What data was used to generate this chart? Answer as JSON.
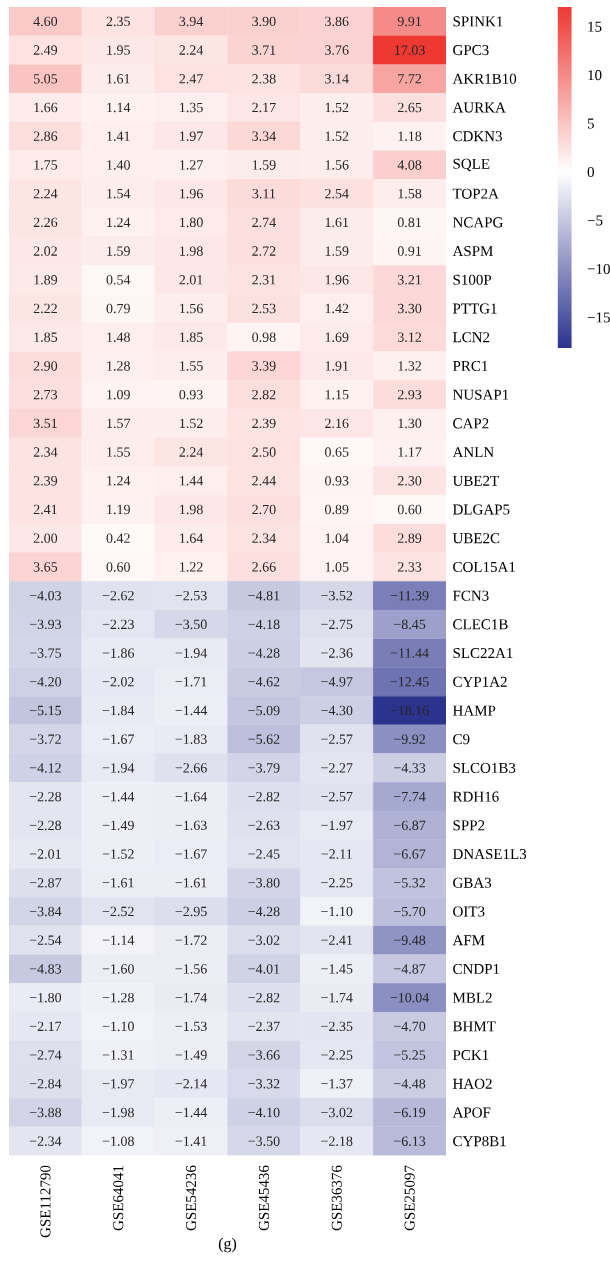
{
  "chart_data": {
    "type": "heatmap",
    "categories": [
      "GSE112790",
      "GSE64041",
      "GSE54236",
      "GSE45436",
      "GSE36376",
      "GSE25097"
    ],
    "y_categories": [
      "SPINK1",
      "GPC3",
      "AKR1B10",
      "AURKA",
      "CDKN3",
      "SQLE",
      "TOP2A",
      "NCAPG",
      "ASPM",
      "S100P",
      "PTTG1",
      "LCN2",
      "PRC1",
      "NUSAP1",
      "CAP2",
      "ANLN",
      "UBE2T",
      "DLGAP5",
      "UBE2C",
      "COL15A1",
      "FCN3",
      "CLEC1B",
      "SLC22A1",
      "CYP1A2",
      "HAMP",
      "C9",
      "SLCO1B3",
      "RDH16",
      "SPP2",
      "DNASE1L3",
      "GBA3",
      "OIT3",
      "AFM",
      "CNDP1",
      "MBL2",
      "BHMT",
      "PCK1",
      "HAO2",
      "APOF",
      "CYP8B1"
    ],
    "cells": [
      [
        4.6,
        2.35,
        3.94,
        3.9,
        3.86,
        9.91
      ],
      [
        2.49,
        1.95,
        2.24,
        3.71,
        3.76,
        17.03
      ],
      [
        5.05,
        1.61,
        2.47,
        2.38,
        3.14,
        7.72
      ],
      [
        1.66,
        1.14,
        1.35,
        2.17,
        1.52,
        2.65
      ],
      [
        2.86,
        1.41,
        1.97,
        3.34,
        1.52,
        1.18
      ],
      [
        1.75,
        1.4,
        1.27,
        1.59,
        1.56,
        4.08
      ],
      [
        2.24,
        1.54,
        1.96,
        3.11,
        2.54,
        1.58
      ],
      [
        2.26,
        1.24,
        1.8,
        2.74,
        1.61,
        0.81
      ],
      [
        2.02,
        1.59,
        1.98,
        2.72,
        1.59,
        0.91
      ],
      [
        1.89,
        0.54,
        2.01,
        2.31,
        1.96,
        3.21
      ],
      [
        2.22,
        0.79,
        1.56,
        2.53,
        1.42,
        3.3
      ],
      [
        1.85,
        1.48,
        1.85,
        0.98,
        1.69,
        3.12
      ],
      [
        2.9,
        1.28,
        1.55,
        3.39,
        1.91,
        1.32
      ],
      [
        2.73,
        1.09,
        0.93,
        2.82,
        1.15,
        2.93
      ],
      [
        3.51,
        1.57,
        1.52,
        2.39,
        2.16,
        1.3
      ],
      [
        2.34,
        1.55,
        2.24,
        2.5,
        0.65,
        1.17
      ],
      [
        2.39,
        1.24,
        1.44,
        2.44,
        0.93,
        2.3
      ],
      [
        2.41,
        1.19,
        1.98,
        2.7,
        0.89,
        0.6
      ],
      [
        2.0,
        0.42,
        1.64,
        2.34,
        1.04,
        2.89
      ],
      [
        3.65,
        0.6,
        1.22,
        2.66,
        1.05,
        2.33
      ],
      [
        -4.03,
        -2.62,
        -2.53,
        -4.81,
        -3.52,
        -11.39
      ],
      [
        -3.93,
        -2.23,
        -3.5,
        -4.18,
        -2.75,
        -8.45
      ],
      [
        -3.75,
        -1.86,
        -1.94,
        -4.28,
        -2.36,
        -11.44
      ],
      [
        -4.2,
        -2.02,
        -1.71,
        -4.62,
        -4.97,
        -12.45
      ],
      [
        -5.15,
        -1.84,
        -1.44,
        -5.09,
        -4.3,
        -18.16
      ],
      [
        -3.72,
        -1.67,
        -1.83,
        -5.62,
        -2.57,
        -9.92
      ],
      [
        -4.12,
        -1.94,
        -2.66,
        -3.79,
        -2.27,
        -4.33
      ],
      [
        -2.28,
        -1.44,
        -1.64,
        -2.82,
        -2.57,
        -7.74
      ],
      [
        -2.28,
        -1.49,
        -1.63,
        -2.63,
        -1.97,
        -6.87
      ],
      [
        -2.01,
        -1.52,
        -1.67,
        -2.45,
        -2.11,
        -6.67
      ],
      [
        -2.87,
        -1.61,
        -1.61,
        -3.8,
        -2.25,
        -5.32
      ],
      [
        -3.84,
        -2.52,
        -2.95,
        -4.28,
        -1.1,
        -5.7
      ],
      [
        -2.54,
        -1.14,
        -1.72,
        -3.02,
        -2.41,
        -9.48
      ],
      [
        -4.83,
        -1.6,
        -1.56,
        -4.01,
        -1.45,
        -4.87
      ],
      [
        -1.8,
        -1.28,
        -1.74,
        -2.82,
        -1.74,
        -10.04
      ],
      [
        -2.17,
        -1.1,
        -1.53,
        -2.37,
        -2.35,
        -4.7
      ],
      [
        -2.74,
        -1.31,
        -1.49,
        -3.66,
        -2.25,
        -5.25
      ],
      [
        -2.84,
        -1.97,
        -2.14,
        -3.32,
        -1.37,
        -4.48
      ],
      [
        -3.88,
        -1.98,
        -1.44,
        -4.1,
        -3.02,
        -6.19
      ],
      [
        -2.34,
        -1.08,
        -1.41,
        -3.5,
        -2.18,
        -6.13
      ]
    ],
    "cell_labels": [
      [
        "4.60",
        "2.35",
        "3.94",
        "3.90",
        "3.86",
        "9.91"
      ],
      [
        "2.49",
        "1.95",
        "2.24",
        "3.71",
        "3.76",
        "17.03"
      ],
      [
        "5.05",
        "1.61",
        "2.47",
        "2.38",
        "3.14",
        "7.72"
      ],
      [
        "1.66",
        "1.14",
        "1.35",
        "2.17",
        "1.52",
        "2.65"
      ],
      [
        "2.86",
        "1.41",
        "1.97",
        "3.34",
        "1.52",
        "1.18"
      ],
      [
        "1.75",
        "1.40",
        "1.27",
        "1.59",
        "1.56",
        "4.08"
      ],
      [
        "2.24",
        "1.54",
        "1.96",
        "3.11",
        "2.54",
        "1.58"
      ],
      [
        "2.26",
        "1.24",
        "1.80",
        "2.74",
        "1.61",
        "0.81"
      ],
      [
        "2.02",
        "1.59",
        "1.98",
        "2.72",
        "1.59",
        "0.91"
      ],
      [
        "1.89",
        "0.54",
        "2.01",
        "2.31",
        "1.96",
        "3.21"
      ],
      [
        "2.22",
        "0.79",
        "1.56",
        "2.53",
        "1.42",
        "3.30"
      ],
      [
        "1.85",
        "1.48",
        "1.85",
        "0.98",
        "1.69",
        "3.12"
      ],
      [
        "2.90",
        "1.28",
        "1.55",
        "3.39",
        "1.91",
        "1.32"
      ],
      [
        "2.73",
        "1.09",
        "0.93",
        "2.82",
        "1.15",
        "2.93"
      ],
      [
        "3.51",
        "1.57",
        "1.52",
        "2.39",
        "2.16",
        "1.30"
      ],
      [
        "2.34",
        "1.55",
        "2.24",
        "2.50",
        "0.65",
        "1.17"
      ],
      [
        "2.39",
        "1.24",
        "1.44",
        "2.44",
        "0.93",
        "2.30"
      ],
      [
        "2.41",
        "1.19",
        "1.98",
        "2.70",
        "0.89",
        "0.60"
      ],
      [
        "2.00",
        "0.42",
        "1.64",
        "2.34",
        "1.04",
        "2.89"
      ],
      [
        "3.65",
        "0.60",
        "1.22",
        "2.66",
        "1.05",
        "2.33"
      ],
      [
        "−4.03",
        "−2.62",
        "−2.53",
        "−4.81",
        "−3.52",
        "−11.39"
      ],
      [
        "−3.93",
        "−2.23",
        "−3.50",
        "−4.18",
        "−2.75",
        "−8.45"
      ],
      [
        "−3.75",
        "−1.86",
        "−1.94",
        "−4.28",
        "−2.36",
        "−11.44"
      ],
      [
        "−4.20",
        "−2.02",
        "−1.71",
        "−4.62",
        "−4.97",
        "−12.45"
      ],
      [
        "−5.15",
        "−1.84",
        "−1.44",
        "−5.09",
        "−4.30",
        "−18.16"
      ],
      [
        "−3.72",
        "−1.67",
        "−1.83",
        "−5.62",
        "−2.57",
        "−9.92"
      ],
      [
        "−4.12",
        "−1.94",
        "−2.66",
        "−3.79",
        "−2.27",
        "−4.33"
      ],
      [
        "−2.28",
        "−1.44",
        "−1.64",
        "−2.82",
        "−2.57",
        "−7.74"
      ],
      [
        "−2.28",
        "−1.49",
        "−1.63",
        "−2.63",
        "−1.97",
        "−6.87"
      ],
      [
        "−2.01",
        "−1.52",
        "−1.67",
        "−2.45",
        "−2.11",
        "−6.67"
      ],
      [
        "−2.87",
        "−1.61",
        "−1.61",
        "−3.80",
        "−2.25",
        "−5.32"
      ],
      [
        "−3.84",
        "−2.52",
        "−2.95",
        "−4.28",
        "−1.10",
        "−5.70"
      ],
      [
        "−2.54",
        "−1.14",
        "−1.72",
        "−3.02",
        "−2.41",
        "−9.48"
      ],
      [
        "−4.83",
        "−1.60",
        "−1.56",
        "−4.01",
        "−1.45",
        "−4.87"
      ],
      [
        "−1.80",
        "−1.28",
        "−1.74",
        "−2.82",
        "−1.74",
        "−10.04"
      ],
      [
        "−2.17",
        "−1.10",
        "−1.53",
        "−2.37",
        "−2.35",
        "−4.70"
      ],
      [
        "−2.74",
        "−1.31",
        "−1.49",
        "−3.66",
        "−2.25",
        "−5.25"
      ],
      [
        "−2.84",
        "−1.97",
        "−2.14",
        "−3.32",
        "−1.37",
        "−4.48"
      ],
      [
        "−3.88",
        "−1.98",
        "−1.44",
        "−4.10",
        "−3.02",
        "−6.19"
      ],
      [
        "−2.34",
        "−1.08",
        "−1.41",
        "−3.50",
        "−2.18",
        "−6.13"
      ]
    ],
    "clim": [
      -18.16,
      17.03
    ],
    "cticks": [
      {
        "value": 15,
        "label": "15"
      },
      {
        "value": 10,
        "label": "10"
      },
      {
        "value": 5,
        "label": "5"
      },
      {
        "value": 0,
        "label": "0"
      },
      {
        "value": -5,
        "label": "−5"
      },
      {
        "value": -10,
        "label": "−10"
      },
      {
        "value": -15,
        "label": "−15"
      }
    ],
    "annotations": [
      "(g)"
    ]
  }
}
